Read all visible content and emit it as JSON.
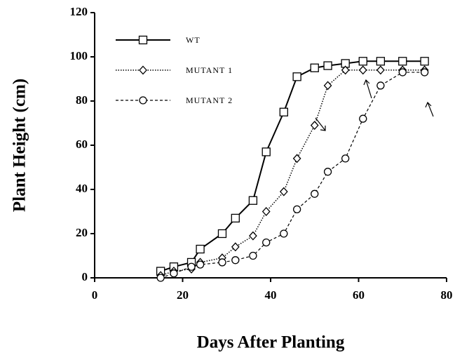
{
  "chart_data": {
    "type": "line",
    "xlabel": "Days After Planting",
    "ylabel": "Plant Height (cm)",
    "xlim": [
      0,
      80
    ],
    "xticks": [
      0,
      20,
      40,
      60,
      80
    ],
    "ylim": [
      0,
      120
    ],
    "yticks": [
      0,
      20,
      40,
      60,
      80,
      100,
      120
    ],
    "legend": "upper left",
    "x": [
      15,
      18,
      22,
      24,
      29,
      32,
      36,
      39,
      43,
      46,
      50,
      53,
      57,
      61,
      65,
      70,
      75
    ],
    "series": [
      {
        "name": "WT",
        "color": "#000000",
        "marker": "square",
        "dash": "solid",
        "values": [
          3,
          5,
          7,
          13,
          20,
          27,
          35,
          57,
          75,
          91,
          95,
          96,
          97,
          98,
          98,
          98,
          98
        ]
      },
      {
        "name": "MUTANT 1",
        "color": "#000000",
        "marker": "diamond",
        "dash": "dotted",
        "values": [
          1,
          3,
          4,
          7,
          9,
          14,
          19,
          30,
          39,
          54,
          69,
          87,
          94,
          94,
          94,
          94,
          94
        ]
      },
      {
        "name": "MUTANT 2",
        "color": "#000000",
        "marker": "circle",
        "dash": "dashed",
        "values": [
          0,
          2,
          5,
          6,
          7,
          8,
          10,
          16,
          20,
          31,
          38,
          48,
          54,
          72,
          87,
          93,
          93
        ]
      }
    ]
  }
}
